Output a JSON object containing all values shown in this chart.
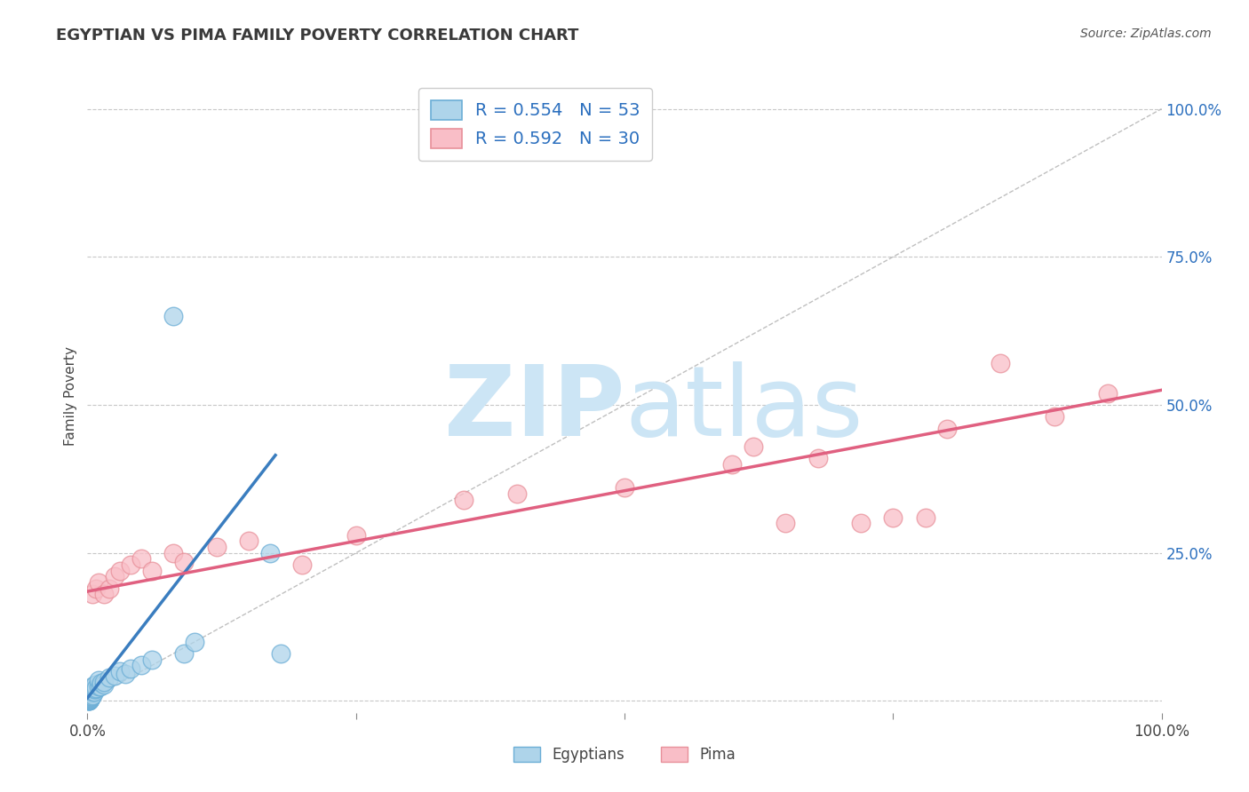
{
  "title": "EGYPTIAN VS PIMA FAMILY POVERTY CORRELATION CHART",
  "source": "Source: ZipAtlas.com",
  "ylabel": "Family Poverty",
  "xlim": [
    0,
    1.0
  ],
  "ylim": [
    -0.02,
    1.05
  ],
  "legend_r1": "R = 0.554   N = 53",
  "legend_r2": "R = 0.592   N = 30",
  "blue_face": "#aed4ea",
  "blue_edge": "#6baed6",
  "pink_face": "#f9bec7",
  "pink_edge": "#e8909a",
  "blue_line": "#3a7dbf",
  "pink_line": "#e06080",
  "title_color": "#3a3a3a",
  "source_color": "#555555",
  "legend_text_color": "#2b6fbe",
  "watermark_color": "#cce5f5",
  "background_color": "#ffffff",
  "grid_color": "#c8c8c8",
  "diag_color": "#b0b0b0",
  "eg_x": [
    0.001,
    0.001,
    0.001,
    0.001,
    0.001,
    0.001,
    0.001,
    0.001,
    0.001,
    0.001,
    0.002,
    0.002,
    0.002,
    0.002,
    0.002,
    0.002,
    0.002,
    0.002,
    0.002,
    0.003,
    0.003,
    0.003,
    0.003,
    0.003,
    0.004,
    0.004,
    0.004,
    0.005,
    0.005,
    0.005,
    0.006,
    0.006,
    0.007,
    0.007,
    0.008,
    0.01,
    0.01,
    0.012,
    0.013,
    0.015,
    0.015,
    0.02,
    0.025,
    0.03,
    0.035,
    0.04,
    0.05,
    0.06,
    0.08,
    0.09,
    0.1,
    0.17,
    0.18
  ],
  "eg_y": [
    0.0,
    0.0,
    0.0,
    0.0,
    0.002,
    0.002,
    0.003,
    0.004,
    0.005,
    0.006,
    0.002,
    0.003,
    0.004,
    0.005,
    0.006,
    0.007,
    0.008,
    0.01,
    0.012,
    0.005,
    0.006,
    0.008,
    0.01,
    0.015,
    0.008,
    0.012,
    0.018,
    0.01,
    0.015,
    0.025,
    0.015,
    0.02,
    0.02,
    0.028,
    0.022,
    0.025,
    0.035,
    0.025,
    0.03,
    0.028,
    0.032,
    0.04,
    0.042,
    0.05,
    0.045,
    0.055,
    0.06,
    0.07,
    0.65,
    0.08,
    0.1,
    0.25,
    0.08
  ],
  "pima_x": [
    0.005,
    0.008,
    0.01,
    0.015,
    0.02,
    0.025,
    0.03,
    0.04,
    0.05,
    0.06,
    0.08,
    0.09,
    0.12,
    0.15,
    0.2,
    0.25,
    0.35,
    0.4,
    0.5,
    0.6,
    0.62,
    0.65,
    0.68,
    0.72,
    0.75,
    0.78,
    0.8,
    0.85,
    0.9,
    0.95
  ],
  "pima_y": [
    0.18,
    0.19,
    0.2,
    0.18,
    0.19,
    0.21,
    0.22,
    0.23,
    0.24,
    0.22,
    0.25,
    0.235,
    0.26,
    0.27,
    0.23,
    0.28,
    0.34,
    0.35,
    0.36,
    0.4,
    0.43,
    0.3,
    0.41,
    0.3,
    0.31,
    0.31,
    0.46,
    0.57,
    0.48,
    0.52
  ],
  "blue_trend_x": [
    0.0,
    0.175
  ],
  "blue_trend_y": [
    0.005,
    0.415
  ],
  "pink_trend_x": [
    0.0,
    1.0
  ],
  "pink_trend_y": [
    0.185,
    0.525
  ]
}
